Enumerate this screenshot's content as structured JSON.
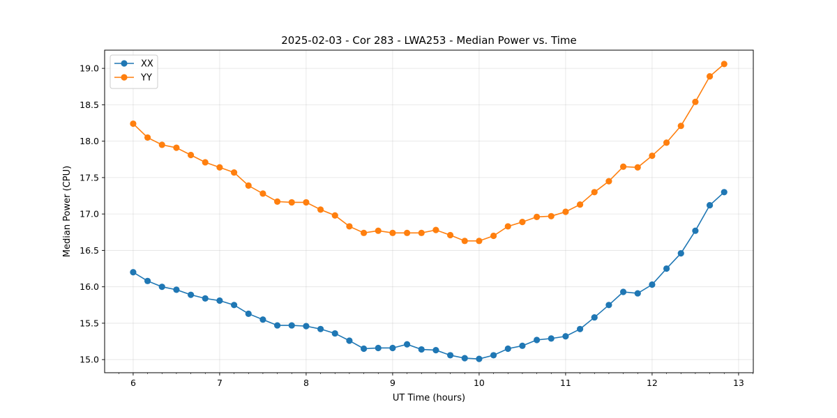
{
  "chart_data": {
    "type": "line",
    "title": "2025-02-03 - Cor 283 - LWA253 - Median Power vs. Time",
    "xlabel": "UT Time (hours)",
    "ylabel": "Median Power (CPU)",
    "xlim": [
      5.67,
      13.17
    ],
    "ylim": [
      14.82,
      19.25
    ],
    "xticks": [
      6,
      7,
      8,
      9,
      10,
      11,
      12,
      13
    ],
    "xtick_labels": [
      "6",
      "7",
      "8",
      "9",
      "10",
      "11",
      "12",
      "13"
    ],
    "yticks": [
      15.0,
      15.5,
      16.0,
      16.5,
      17.0,
      17.5,
      18.0,
      18.5,
      19.0
    ],
    "ytick_labels": [
      "15.0",
      "15.5",
      "16.0",
      "16.5",
      "17.0",
      "17.5",
      "18.0",
      "18.5",
      "19.0"
    ],
    "grid": true,
    "legend_position": "top-left",
    "x": [
      6.0,
      6.1667,
      6.3333,
      6.5,
      6.6667,
      6.8333,
      7.0,
      7.1667,
      7.3333,
      7.5,
      7.6667,
      7.8333,
      8.0,
      8.1667,
      8.3333,
      8.5,
      8.6667,
      8.8333,
      9.0,
      9.1667,
      9.3333,
      9.5,
      9.6667,
      9.8333,
      10.0,
      10.1667,
      10.3333,
      10.5,
      10.6667,
      10.8333,
      11.0,
      11.1667,
      11.3333,
      11.5,
      11.6667,
      11.8333,
      12.0,
      12.1667,
      12.3333,
      12.5,
      12.6667,
      12.8333
    ],
    "series": [
      {
        "name": "XX",
        "color": "#1f77b4",
        "values": [
          16.2,
          16.08,
          16.0,
          15.96,
          15.89,
          15.84,
          15.81,
          15.75,
          15.63,
          15.55,
          15.47,
          15.47,
          15.46,
          15.42,
          15.36,
          15.26,
          15.15,
          15.16,
          15.16,
          15.21,
          15.14,
          15.13,
          15.06,
          15.02,
          15.01,
          15.06,
          15.15,
          15.19,
          15.27,
          15.29,
          15.32,
          15.42,
          15.58,
          15.75,
          15.93,
          15.91,
          16.03,
          16.25,
          16.46,
          16.77,
          17.12,
          17.3
        ]
      },
      {
        "name": "YY",
        "color": "#ff7f0e",
        "values": [
          18.24,
          18.05,
          17.95,
          17.91,
          17.81,
          17.71,
          17.64,
          17.57,
          17.39,
          17.28,
          17.17,
          17.16,
          17.16,
          17.06,
          16.98,
          16.83,
          16.74,
          16.77,
          16.74,
          16.74,
          16.74,
          16.78,
          16.71,
          16.63,
          16.63,
          16.7,
          16.83,
          16.89,
          16.96,
          16.97,
          17.03,
          17.13,
          17.3,
          17.45,
          17.65,
          17.64,
          17.8,
          17.98,
          18.21,
          18.54,
          18.89,
          19.06
        ]
      }
    ]
  }
}
